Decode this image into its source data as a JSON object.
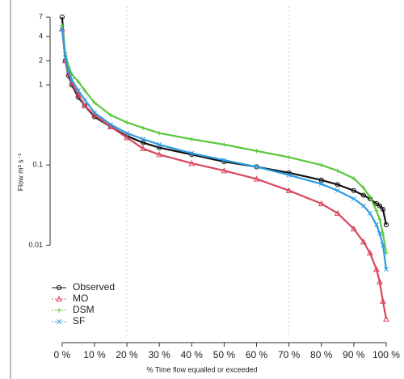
{
  "chart_data": {
    "type": "line",
    "y_label": "Flow m³ s⁻¹",
    "x_label": "% Time flow equalled or exceeded",
    "log_y": true,
    "legend": "bottom-left",
    "xlim": [
      -3.7,
      103.5
    ],
    "ylim": [
      0.0007,
      9.5
    ],
    "xticks": [
      {
        "value": 0,
        "label": "0 %"
      },
      {
        "value": 10,
        "label": "10 %"
      },
      {
        "value": 20,
        "label": "20 %"
      },
      {
        "value": 30,
        "label": "30 %"
      },
      {
        "value": 40,
        "label": "40 %"
      },
      {
        "value": 50,
        "label": "50 %"
      },
      {
        "value": 60,
        "label": "60 %"
      },
      {
        "value": 70,
        "label": "70 %"
      },
      {
        "value": 80,
        "label": "80 %"
      },
      {
        "value": 90,
        "label": "90 %"
      },
      {
        "value": 100,
        "label": "100 %"
      }
    ],
    "yticks": [
      0.01,
      0.1,
      1,
      2,
      4,
      7
    ],
    "xgrid": [
      20,
      70
    ],
    "x": [
      0,
      1,
      2,
      3,
      5,
      7,
      10,
      15,
      20,
      25,
      30,
      40,
      50,
      60,
      70,
      80,
      85,
      90,
      93,
      95,
      97,
      98,
      99,
      100
    ],
    "series": [
      {
        "name": "Observed",
        "color": "#111111",
        "marker": "circle",
        "values": [
          7,
          2,
          1.3,
          1.0,
          0.7,
          0.55,
          0.4,
          0.3,
          0.23,
          0.19,
          0.165,
          0.135,
          0.11,
          0.095,
          0.08,
          0.065,
          0.057,
          0.048,
          0.042,
          0.038,
          0.033,
          0.031,
          0.028,
          0.018
        ]
      },
      {
        "name": "MO",
        "color": "#d9475f",
        "marker": "triangle",
        "values": [
          5,
          2,
          1.4,
          1.05,
          0.75,
          0.55,
          0.42,
          0.3,
          0.22,
          0.16,
          0.135,
          0.105,
          0.085,
          0.067,
          0.048,
          0.033,
          0.025,
          0.016,
          0.011,
          0.008,
          0.005,
          0.0035,
          0.002,
          0.0012
        ]
      },
      {
        "name": "DSM",
        "color": "#5bc83c",
        "marker": "plus",
        "values": [
          5.5,
          2.5,
          1.7,
          1.35,
          1.1,
          0.85,
          0.6,
          0.42,
          0.34,
          0.29,
          0.25,
          0.21,
          0.18,
          0.15,
          0.125,
          0.1,
          0.085,
          0.068,
          0.052,
          0.04,
          0.027,
          0.021,
          0.014,
          0.008
        ]
      },
      {
        "name": "SF",
        "color": "#2e9be0",
        "marker": "cross",
        "values": [
          5,
          2.2,
          1.5,
          1.15,
          0.85,
          0.65,
          0.45,
          0.32,
          0.25,
          0.21,
          0.18,
          0.14,
          0.115,
          0.095,
          0.075,
          0.058,
          0.048,
          0.038,
          0.031,
          0.025,
          0.018,
          0.014,
          0.01,
          0.005
        ]
      }
    ]
  }
}
